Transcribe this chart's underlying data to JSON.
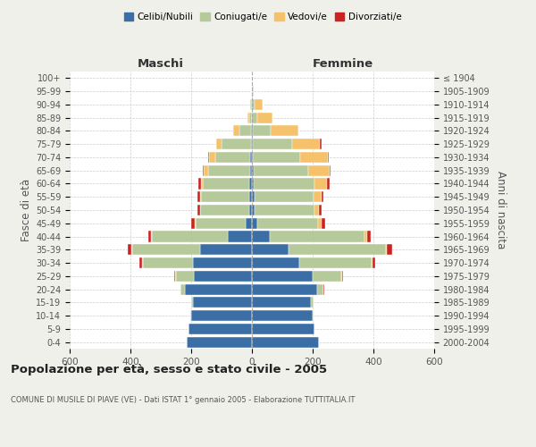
{
  "age_groups": [
    "0-4",
    "5-9",
    "10-14",
    "15-19",
    "20-24",
    "25-29",
    "30-34",
    "35-39",
    "40-44",
    "45-49",
    "50-54",
    "55-59",
    "60-64",
    "65-69",
    "70-74",
    "75-79",
    "80-84",
    "85-89",
    "90-94",
    "95-99",
    "100+"
  ],
  "birth_years": [
    "2000-2004",
    "1995-1999",
    "1990-1994",
    "1985-1989",
    "1980-1984",
    "1975-1979",
    "1970-1974",
    "1965-1969",
    "1960-1964",
    "1955-1959",
    "1950-1954",
    "1945-1949",
    "1940-1944",
    "1935-1939",
    "1930-1934",
    "1925-1929",
    "1920-1924",
    "1915-1919",
    "1910-1914",
    "1905-1909",
    "≤ 1904"
  ],
  "males": {
    "celibi": [
      215,
      210,
      200,
      195,
      220,
      190,
      195,
      170,
      80,
      20,
      10,
      8,
      8,
      5,
      5,
      4,
      2,
      0,
      0,
      0,
      0
    ],
    "coniugati": [
      0,
      0,
      2,
      5,
      15,
      60,
      165,
      225,
      250,
      165,
      160,
      160,
      155,
      140,
      115,
      95,
      40,
      10,
      5,
      1,
      0
    ],
    "vedovi": [
      0,
      0,
      0,
      0,
      0,
      2,
      2,
      2,
      2,
      2,
      2,
      3,
      5,
      15,
      20,
      20,
      20,
      5,
      2,
      0,
      0
    ],
    "divorziati": [
      0,
      0,
      0,
      0,
      0,
      3,
      8,
      12,
      10,
      12,
      8,
      8,
      8,
      3,
      5,
      0,
      0,
      0,
      0,
      0,
      0
    ]
  },
  "females": {
    "nubili": [
      220,
      205,
      200,
      195,
      215,
      200,
      155,
      120,
      60,
      18,
      10,
      8,
      7,
      5,
      4,
      3,
      2,
      0,
      0,
      0,
      0
    ],
    "coniugate": [
      0,
      2,
      3,
      8,
      20,
      95,
      240,
      320,
      310,
      200,
      195,
      195,
      200,
      180,
      155,
      130,
      60,
      18,
      8,
      2,
      0
    ],
    "vedove": [
      0,
      0,
      0,
      0,
      0,
      2,
      3,
      5,
      8,
      10,
      15,
      25,
      40,
      70,
      90,
      90,
      90,
      50,
      28,
      5,
      1
    ],
    "divorziate": [
      0,
      0,
      0,
      0,
      2,
      4,
      8,
      18,
      12,
      12,
      8,
      8,
      8,
      3,
      5,
      5,
      2,
      0,
      0,
      0,
      0
    ]
  },
  "color_celibi": "#3a6ea5",
  "color_coniugati": "#b5c99a",
  "color_vedovi": "#f5c26b",
  "color_divorziati": "#cc2222",
  "xlim": 600,
  "title": "Popolazione per età, sesso e stato civile - 2005",
  "subtitle": "COMUNE DI MUSILE DI PIAVE (VE) - Dati ISTAT 1° gennaio 2005 - Elaborazione TUTTITALIA.IT",
  "ylabel_left": "Fasce di età",
  "ylabel_right": "Anni di nascita",
  "xlabel_left": "Maschi",
  "xlabel_right": "Femmine",
  "bg_color": "#f0f0eb",
  "plot_bg_color": "#ffffff"
}
